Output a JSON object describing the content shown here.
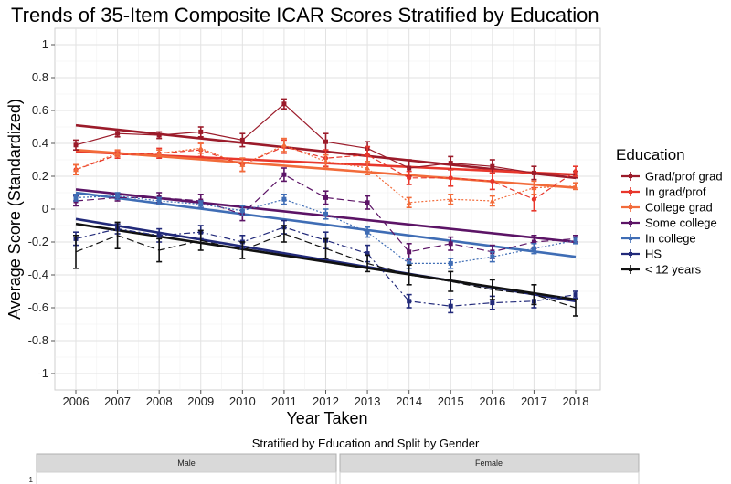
{
  "chart_data": [
    {
      "type": "line",
      "title": "Trends of 35-Item Composite ICAR Scores Stratified by Education",
      "xlabel": "Year Taken",
      "ylabel": "Average Score (Standardized)",
      "x": [
        2006,
        2007,
        2008,
        2009,
        2010,
        2011,
        2012,
        2013,
        2014,
        2015,
        2016,
        2017,
        2018
      ],
      "x_tick_labels": [
        "2006",
        "2007",
        "2008",
        "2009",
        "2010",
        "2011",
        "2012",
        "2013",
        "2014",
        "2015",
        "2016",
        "2017",
        "2018"
      ],
      "ylim": [
        -1.1,
        1.1
      ],
      "y_ticks": [
        -1,
        -0.8,
        -0.6,
        -0.4,
        -0.2,
        0,
        0.2,
        0.4,
        0.6,
        0.8,
        1
      ],
      "y_tick_labels": [
        "-1",
        "-0.8",
        "-0.6",
        "-0.4",
        "-0.2",
        "0",
        "0.2",
        "0.4",
        "0.6",
        "0.8",
        "1"
      ],
      "grid": true,
      "error_bars": true,
      "legend_title": "Education",
      "legend_position": "right",
      "series": [
        {
          "name": "Grad/prof grad",
          "color": "#9b1b2a",
          "dash": "solid",
          "marker": "square",
          "values": [
            0.39,
            0.46,
            0.45,
            0.47,
            0.42,
            0.64,
            0.41,
            0.37,
            0.25,
            0.28,
            0.26,
            0.22,
            0.21
          ],
          "errors": [
            0.03,
            0.02,
            0.02,
            0.03,
            0.04,
            0.03,
            0.05,
            0.04,
            0.05,
            0.04,
            0.04,
            0.04,
            0.02
          ],
          "trend": [
            0.51,
            0.19
          ]
        },
        {
          "name": "In grad/prof",
          "color": "#e8372c",
          "dash": "dash",
          "marker": "circle",
          "values": [
            0.24,
            0.33,
            0.34,
            0.36,
            0.27,
            0.38,
            0.31,
            0.33,
            0.19,
            0.19,
            0.17,
            0.06,
            0.23
          ],
          "errors": [
            0.03,
            0.02,
            0.03,
            0.04,
            0.04,
            0.04,
            0.05,
            0.05,
            0.04,
            0.05,
            0.05,
            0.07,
            0.03
          ],
          "trend": [
            0.35,
            0.21
          ]
        },
        {
          "name": "College grad",
          "color": "#f26b3a",
          "dash": "dot",
          "marker": "triangle",
          "values": [
            0.24,
            0.34,
            0.34,
            0.37,
            0.27,
            0.39,
            0.29,
            0.25,
            0.04,
            0.06,
            0.05,
            0.13,
            0.14
          ],
          "errors": [
            0.03,
            0.02,
            0.02,
            0.03,
            0.04,
            0.04,
            0.04,
            0.04,
            0.03,
            0.03,
            0.03,
            0.04,
            0.02
          ],
          "trend": [
            0.36,
            0.13
          ]
        },
        {
          "name": "Some college",
          "color": "#5c1466",
          "dash": "longdash",
          "marker": "square",
          "values": [
            0.05,
            0.07,
            0.07,
            0.05,
            -0.03,
            0.21,
            0.07,
            0.04,
            -0.26,
            -0.21,
            -0.26,
            -0.2,
            -0.18
          ],
          "errors": [
            0.03,
            0.02,
            0.03,
            0.04,
            0.04,
            0.04,
            0.04,
            0.04,
            0.05,
            0.04,
            0.04,
            0.04,
            0.02
          ],
          "trend": [
            0.12,
            -0.2
          ]
        },
        {
          "name": "In college",
          "color": "#3f6db5",
          "dash": "dot",
          "marker": "square",
          "values": [
            0.07,
            0.08,
            0.05,
            0.03,
            -0.01,
            0.06,
            -0.03,
            -0.14,
            -0.33,
            -0.33,
            -0.29,
            -0.24,
            -0.19
          ],
          "errors": [
            0.02,
            0.02,
            0.02,
            0.02,
            0.03,
            0.03,
            0.03,
            0.03,
            0.03,
            0.03,
            0.03,
            0.03,
            0.02
          ],
          "trend": [
            0.1,
            -0.29
          ]
        },
        {
          "name": "HS",
          "color": "#222a7a",
          "dash": "dashdot",
          "marker": "square",
          "values": [
            -0.18,
            -0.12,
            -0.16,
            -0.14,
            -0.2,
            -0.11,
            -0.19,
            -0.27,
            -0.56,
            -0.59,
            -0.57,
            -0.56,
            -0.52
          ],
          "errors": [
            0.04,
            0.03,
            0.04,
            0.04,
            0.04,
            0.04,
            0.05,
            0.05,
            0.04,
            0.04,
            0.04,
            0.04,
            0.02
          ],
          "trend": [
            -0.06,
            -0.56
          ]
        },
        {
          "name": "< 12 years",
          "color": "#111111",
          "dash": "longdash",
          "marker": "none",
          "values": [
            -0.26,
            -0.16,
            -0.25,
            -0.19,
            -0.25,
            -0.15,
            -0.24,
            -0.33,
            -0.4,
            -0.44,
            -0.49,
            -0.52,
            -0.6
          ],
          "errors": [
            0.1,
            0.08,
            0.07,
            0.06,
            0.05,
            0.05,
            0.06,
            0.05,
            0.06,
            0.06,
            0.06,
            0.06,
            0.05
          ],
          "trend": [
            -0.09,
            -0.55
          ]
        }
      ]
    },
    {
      "type": "line",
      "title": "Stratified by Education and Split by Gender",
      "facets": [
        "Male",
        "Female"
      ],
      "y_tick_labels": [
        "1"
      ]
    }
  ]
}
